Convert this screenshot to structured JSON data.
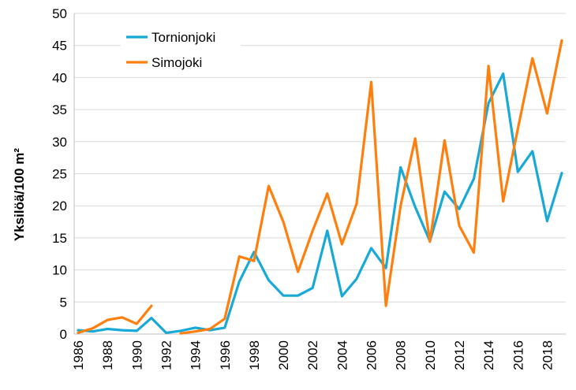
{
  "chart_data": {
    "type": "line",
    "title": "",
    "xlabel": "",
    "ylabel": "Yksilöä/100 m²",
    "ylim": [
      0,
      50
    ],
    "yticks": [
      0,
      5,
      10,
      15,
      20,
      25,
      30,
      35,
      40,
      45,
      50
    ],
    "xlim": [
      1986,
      2019
    ],
    "xtick_labels": [
      "1986",
      "1988",
      "1990",
      "1992",
      "1994",
      "1996",
      "1998",
      "2000",
      "2002",
      "2004",
      "2006",
      "2008",
      "2010",
      "2012",
      "2014",
      "2016",
      "2018"
    ],
    "grid": "horizontal",
    "legend_position": "top-left",
    "series": [
      {
        "name": "Tornionjoki",
        "color": "#19A9D6",
        "x": [
          1986,
          1987,
          1988,
          1989,
          1990,
          1991,
          1992,
          1993,
          1994,
          1995,
          1996,
          1997,
          1998,
          1999,
          2000,
          2001,
          2002,
          2003,
          2004,
          2005,
          2006,
          2007,
          2008,
          2009,
          2010,
          2011,
          2012,
          2013,
          2014,
          2015,
          2016,
          2017,
          2018,
          2019
        ],
        "values": [
          0.6,
          0.4,
          0.8,
          0.6,
          0.5,
          2.5,
          0.2,
          0.5,
          1.0,
          0.6,
          1.0,
          8.2,
          12.8,
          8.4,
          6.0,
          6.0,
          7.2,
          16.1,
          5.9,
          8.6,
          13.4,
          10.3,
          26.0,
          19.8,
          14.5,
          22.2,
          19.5,
          24.2,
          36.0,
          40.6,
          25.3,
          28.5,
          17.6,
          25.1
        ]
      },
      {
        "name": "Simojoki",
        "color": "#FF7F0E",
        "x": [
          1986,
          1987,
          1988,
          1989,
          1990,
          1991,
          null,
          1993,
          1994,
          1995,
          1996,
          1997,
          1998,
          1999,
          2000,
          2001,
          2002,
          2003,
          2004,
          2005,
          2006,
          2007,
          2008,
          2009,
          2010,
          2011,
          2012,
          2013,
          2014,
          2015,
          2016,
          2017,
          2018,
          2019
        ],
        "values": [
          0.2,
          0.9,
          2.2,
          2.6,
          1.6,
          4.4,
          null,
          0.1,
          0.4,
          0.8,
          2.4,
          12.1,
          11.4,
          23.1,
          17.5,
          9.7,
          16.1,
          21.9,
          14.0,
          20.3,
          39.3,
          4.4,
          20.0,
          30.5,
          14.4,
          30.2,
          16.9,
          12.7,
          41.8,
          20.7,
          32.0,
          43.0,
          34.4,
          45.8
        ]
      }
    ]
  }
}
